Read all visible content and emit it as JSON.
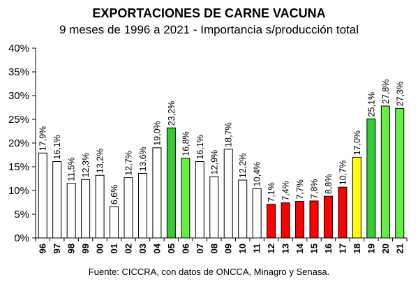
{
  "title": "EXPORTACIONES DE CARNE VACUNA",
  "subtitle": "9 meses de 1996 a 2021 - Importancia s/producción total",
  "source": "Fuente: CICCRA, con datos de ONCCA, Minagro y Senasa.",
  "colors": {
    "white": "#ffffff",
    "green": "#33cc33",
    "green_light": "#66ee44",
    "red": "#ff0000",
    "yellow": "#ffff00"
  },
  "chart_data": {
    "type": "bar",
    "categories": [
      "96",
      "97",
      "98",
      "99",
      "00",
      "01",
      "02",
      "03",
      "04",
      "05",
      "06",
      "07",
      "08",
      "09",
      "10",
      "11",
      "12",
      "13",
      "14",
      "15",
      "16",
      "17",
      "18",
      "19",
      "20",
      "21"
    ],
    "values": [
      17.9,
      16.1,
      11.5,
      12.3,
      13.2,
      6.6,
      12.7,
      13.6,
      19.0,
      23.2,
      16.8,
      16.1,
      12.9,
      18.7,
      12.2,
      10.4,
      7.1,
      7.4,
      7.7,
      7.8,
      8.8,
      10.7,
      17.0,
      25.1,
      27.8,
      27.3
    ],
    "value_labels": [
      "17,9%",
      "16,1%",
      "11,5%",
      "12,3%",
      "13,2%",
      "6,6%",
      "12,7%",
      "13,6%",
      "19,0%",
      "23,2%",
      "16,8%",
      "16,1%",
      "12,9%",
      "18,7%",
      "12,2%",
      "10,4%",
      "7,1%",
      "7,4%",
      "7,7%",
      "7,8%",
      "8,8%",
      "10,7%",
      "17,0%",
      "25,1%",
      "27,8%",
      "27,3%"
    ],
    "bar_colors": [
      "white",
      "white",
      "white",
      "white",
      "white",
      "white",
      "white",
      "white",
      "white",
      "green",
      "green_light",
      "white",
      "white",
      "white",
      "white",
      "white",
      "red",
      "red",
      "red",
      "red",
      "red",
      "red",
      "yellow",
      "green",
      "green_light",
      "green_light"
    ],
    "ylim": [
      0,
      40
    ],
    "yticks": [
      "0%",
      "5%",
      "10%",
      "15%",
      "20%",
      "25%",
      "30%",
      "35%",
      "40%"
    ],
    "xlabel": "",
    "ylabel": "",
    "grid": false,
    "legend": "none"
  }
}
